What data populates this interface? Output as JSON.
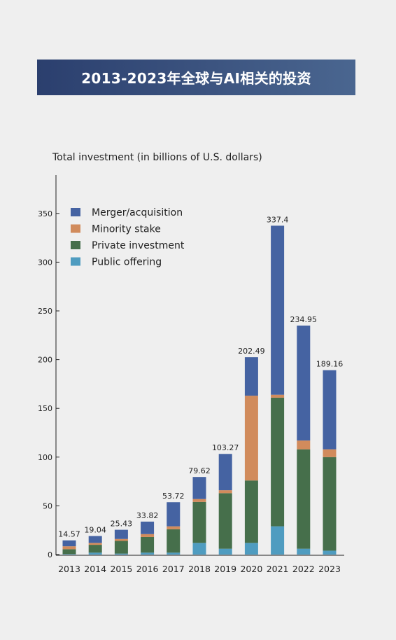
{
  "header": {
    "title": "2013-2023年全球与AI相关的投资"
  },
  "chart_data": {
    "type": "bar",
    "stacked": true,
    "ylabel": "Total investment (in billions of U.S. dollars)",
    "ylim": [
      0,
      390
    ],
    "yticks": [
      0,
      50,
      100,
      150,
      200,
      250,
      300,
      350
    ],
    "grid": false,
    "legend_position": "top-left",
    "categories": [
      "2013",
      "2014",
      "2015",
      "2016",
      "2017",
      "2018",
      "2019",
      "2020",
      "2021",
      "2022",
      "2023"
    ],
    "totals": [
      14.57,
      19.04,
      25.43,
      33.82,
      53.72,
      79.62,
      103.27,
      202.49,
      337.4,
      234.95,
      189.16
    ],
    "series": [
      {
        "name": "Public offering",
        "color": "#4f9cc0",
        "values": [
          0.5,
          2,
          1,
          2,
          2,
          12,
          6,
          12,
          29,
          6,
          4
        ]
      },
      {
        "name": "Private investment",
        "color": "#466f4b",
        "values": [
          5,
          8,
          13,
          16,
          24,
          42,
          57,
          64,
          132,
          102,
          96
        ]
      },
      {
        "name": "Minority stake",
        "color": "#d18b5c",
        "values": [
          3,
          2,
          2,
          3,
          3,
          3,
          3,
          87,
          3,
          9,
          8
        ]
      },
      {
        "name": "Merger/acquisition",
        "color": "#4563a2",
        "values": [
          6.07,
          7.04,
          9.43,
          12.82,
          24.72,
          22.62,
          37.27,
          39.49,
          173.4,
          117.95,
          81.16
        ]
      }
    ],
    "legend_order": [
      "Merger/acquisition",
      "Minority stake",
      "Private investment",
      "Public offering"
    ]
  }
}
